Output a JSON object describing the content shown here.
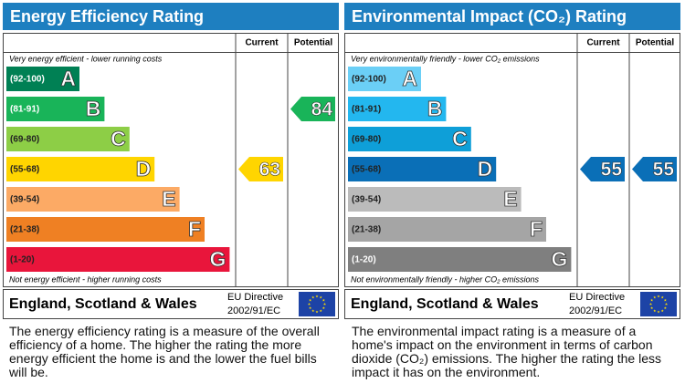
{
  "panels": [
    {
      "title": "Energy Efficiency Rating",
      "col_current": "Current",
      "col_potential": "Potential",
      "top_note": "Very energy efficient - lower running costs",
      "bottom_note": "Not energy efficient - higher running costs",
      "bands": [
        {
          "range": "(92-100)",
          "letter": "A",
          "color": "#008054",
          "label_color": "#ffffff"
        },
        {
          "range": "(81-91)",
          "letter": "B",
          "color": "#19b459",
          "label_color": "#ffffff"
        },
        {
          "range": "(69-80)",
          "letter": "C",
          "color": "#8dce46",
          "label_color": "#222222"
        },
        {
          "range": "(55-68)",
          "letter": "D",
          "color": "#ffd500",
          "label_color": "#222222"
        },
        {
          "range": "(39-54)",
          "letter": "E",
          "color": "#fcaa65",
          "label_color": "#222222"
        },
        {
          "range": "(21-38)",
          "letter": "F",
          "color": "#ef8023",
          "label_color": "#222222"
        },
        {
          "range": "(1-20)",
          "letter": "G",
          "color": "#e9153b",
          "label_color": "#222222"
        }
      ],
      "current": 63,
      "potential": 84,
      "country": "England, Scotland & Wales",
      "directive": "EU Directive",
      "directive_code": "2002/91/EC",
      "description": "The energy efficiency rating is a measure of the overall efficiency of a home. The higher the rating the more energy efficient the home is and the lower the fuel bills will be."
    },
    {
      "title": "Environmental Impact (CO₂) Rating",
      "col_current": "Current",
      "col_potential": "Potential",
      "top_note": "Very environmentally friendly - lower CO₂ emissions",
      "bottom_note": "Not environmentally friendly - higher CO₂ emissions",
      "bands": [
        {
          "range": "(92-100)",
          "letter": "A",
          "color": "#6bcff6",
          "label_color": "#222222"
        },
        {
          "range": "(81-91)",
          "letter": "B",
          "color": "#23b7ef",
          "label_color": "#222222"
        },
        {
          "range": "(69-80)",
          "letter": "C",
          "color": "#0e9fd8",
          "label_color": "#222222"
        },
        {
          "range": "(55-68)",
          "letter": "D",
          "color": "#0a6fb7",
          "label_color": "#222222"
        },
        {
          "range": "(39-54)",
          "letter": "E",
          "color": "#bbbbbb",
          "label_color": "#222222"
        },
        {
          "range": "(21-38)",
          "letter": "F",
          "color": "#a5a5a5",
          "label_color": "#222222"
        },
        {
          "range": "(1-20)",
          "letter": "G",
          "color": "#7f7f7f",
          "label_color": "#ffffff"
        }
      ],
      "current": 55,
      "potential": 55,
      "country": "England, Scotland & Wales",
      "directive": "EU Directive",
      "directive_code": "2002/91/EC",
      "description": "The environmental impact rating is a measure of a home's impact on the environment in terms of carbon dioxide (CO₂) emissions. The higher the rating the less impact it has on the environment."
    }
  ]
}
